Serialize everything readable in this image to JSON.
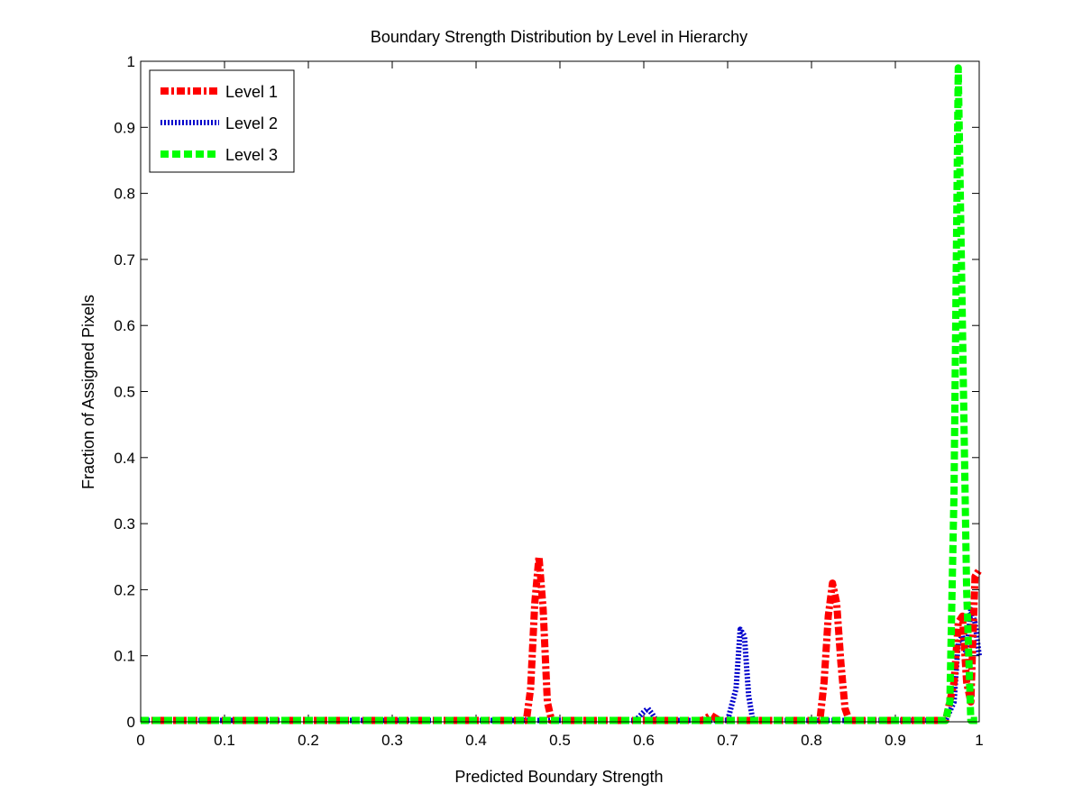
{
  "chart_data": {
    "type": "line",
    "title": "Boundary Strength Distribution by Level in Hierarchy",
    "xlabel": "Predicted Boundary Strength",
    "ylabel": "Fraction of Assigned Pixels",
    "xlim": [
      0,
      1
    ],
    "ylim": [
      0,
      1
    ],
    "xticks": [
      "0",
      "0.1",
      "0.2",
      "0.3",
      "0.4",
      "0.5",
      "0.6",
      "0.7",
      "0.8",
      "0.9",
      "1"
    ],
    "yticks": [
      "0",
      "0.1",
      "0.2",
      "0.3",
      "0.4",
      "0.5",
      "0.6",
      "0.7",
      "0.8",
      "0.9",
      "1"
    ],
    "grid": false,
    "legend_position": "top-left",
    "series": [
      {
        "name": "Level 1",
        "color": "#ff0000",
        "style": "dash-dot",
        "points": [
          [
            0.0,
            0.002
          ],
          [
            0.46,
            0.002
          ],
          [
            0.465,
            0.05
          ],
          [
            0.47,
            0.18
          ],
          [
            0.475,
            0.25
          ],
          [
            0.48,
            0.17
          ],
          [
            0.485,
            0.03
          ],
          [
            0.49,
            0.002
          ],
          [
            0.6,
            0.002
          ],
          [
            0.67,
            0.002
          ],
          [
            0.68,
            0.01
          ],
          [
            0.69,
            0.002
          ],
          [
            0.81,
            0.002
          ],
          [
            0.815,
            0.06
          ],
          [
            0.82,
            0.16
          ],
          [
            0.825,
            0.21
          ],
          [
            0.83,
            0.18
          ],
          [
            0.835,
            0.09
          ],
          [
            0.84,
            0.02
          ],
          [
            0.845,
            0.002
          ],
          [
            0.96,
            0.002
          ],
          [
            0.97,
            0.06
          ],
          [
            0.975,
            0.15
          ],
          [
            0.98,
            0.16
          ],
          [
            0.985,
            0.06
          ],
          [
            0.99,
            0.03
          ],
          [
            0.995,
            0.22
          ],
          [
            1.0,
            0.23
          ]
        ]
      },
      {
        "name": "Level 2",
        "color": "#0000cc",
        "style": "dotted",
        "points": [
          [
            0.0,
            0.002
          ],
          [
            0.59,
            0.002
          ],
          [
            0.6,
            0.015
          ],
          [
            0.605,
            0.02
          ],
          [
            0.61,
            0.012
          ],
          [
            0.615,
            0.002
          ],
          [
            0.7,
            0.002
          ],
          [
            0.71,
            0.05
          ],
          [
            0.715,
            0.14
          ],
          [
            0.72,
            0.13
          ],
          [
            0.725,
            0.04
          ],
          [
            0.73,
            0.002
          ],
          [
            0.96,
            0.002
          ],
          [
            0.97,
            0.03
          ],
          [
            0.975,
            0.12
          ],
          [
            0.98,
            0.13
          ],
          [
            0.985,
            0.1
          ],
          [
            0.99,
            0.17
          ],
          [
            0.995,
            0.15
          ],
          [
            1.0,
            0.1
          ]
        ]
      },
      {
        "name": "Level 3",
        "color": "#00ff00",
        "style": "dashed",
        "points": [
          [
            0.0,
            0.002
          ],
          [
            0.96,
            0.002
          ],
          [
            0.965,
            0.03
          ],
          [
            0.97,
            0.35
          ],
          [
            0.975,
            0.99
          ],
          [
            0.98,
            0.6
          ],
          [
            0.985,
            0.2
          ],
          [
            0.99,
            0.002
          ],
          [
            1.0,
            0.002
          ]
        ]
      }
    ]
  }
}
